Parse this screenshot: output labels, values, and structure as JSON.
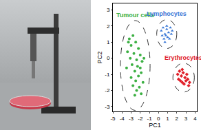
{
  "chart_data": {
    "type": "scatter",
    "x_label": "PC1",
    "y_label": "PC2",
    "xlim": [
      -5,
      4.2
    ],
    "ylim": [
      -3.3,
      3.4
    ],
    "xticks": [
      -5,
      -4,
      -3,
      -2,
      -1,
      0,
      1,
      2,
      3,
      4
    ],
    "yticks": [
      -3,
      -2,
      -1,
      0,
      1,
      2,
      3
    ],
    "grid": false,
    "series": [
      {
        "name": "Tumour cells",
        "color": "#3cb043",
        "marker": "circle",
        "x": [
          -3.2,
          -2.8,
          -2.5,
          -3.0,
          -2.2,
          -3.4,
          -2.7,
          -2.0,
          -3.1,
          -2.4,
          -1.8,
          -2.9,
          -2.3,
          -3.5,
          -2.6,
          -1.9,
          -2.2,
          -3.0,
          -2.5,
          -1.7,
          -2.8,
          -2.1,
          -2.4,
          -1.9,
          -2.6,
          -3.3,
          -1.6,
          -2.0
        ],
        "y": [
          1.2,
          1.4,
          1.0,
          0.8,
          0.6,
          0.4,
          0.3,
          0.2,
          0.0,
          -0.1,
          -0.2,
          -0.4,
          -0.5,
          -0.6,
          -0.8,
          -0.9,
          -1.1,
          -1.2,
          -1.4,
          -1.5,
          -1.7,
          -1.8,
          -2.0,
          -2.2,
          -2.3,
          1.0,
          0.0,
          -0.6
        ]
      },
      {
        "name": "Lymphocytes",
        "color": "#3a78d6",
        "marker": "triangle-up",
        "x": [
          0.3,
          0.5,
          0.7,
          0.9,
          1.1,
          1.3,
          0.6,
          0.8,
          1.0,
          1.2,
          1.4,
          0.4,
          0.9,
          1.5,
          0.7
        ],
        "y": [
          1.7,
          1.9,
          1.5,
          1.8,
          1.6,
          1.9,
          1.2,
          1.4,
          1.3,
          1.2,
          1.5,
          1.4,
          2.0,
          1.7,
          1.0
        ]
      },
      {
        "name": "Erythrocytes",
        "color": "#e0202a",
        "marker": "diamond",
        "x": [
          2.1,
          2.3,
          2.5,
          2.7,
          2.9,
          3.1,
          2.4,
          2.6,
          2.8,
          3.0,
          3.2,
          3.4,
          2.2,
          2.6,
          3.3
        ],
        "y": [
          -1.0,
          -0.8,
          -1.1,
          -0.9,
          -1.2,
          -1.0,
          -1.4,
          -1.5,
          -1.6,
          -1.4,
          -1.3,
          -1.5,
          -1.3,
          -0.7,
          -1.7
        ]
      }
    ]
  }
}
